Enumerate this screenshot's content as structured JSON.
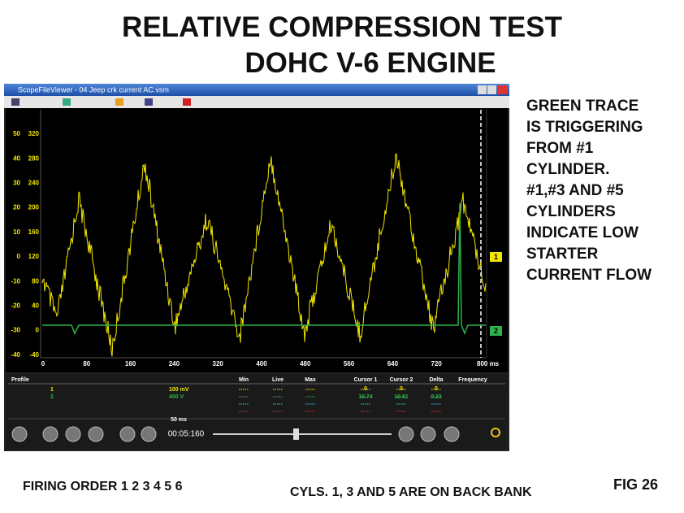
{
  "slide": {
    "title": [
      "RELATIVE COMPRESSION TEST",
      "DOHC V-6 ENGINE"
    ],
    "note": [
      "GREEN TRACE",
      "IS TRIGGERING",
      "FROM #1",
      "CYLINDER.",
      "#1,#3 AND #5",
      "CYLINDERS",
      "INDICATE LOW",
      "STARTER",
      "CURRENT FLOW"
    ],
    "footer_left": "FIRING ORDER 1 2 3 4 5 6",
    "footer_center": "CYLS.  1, 3 AND 5 ARE ON BACK BANK",
    "fig": "FIG  26"
  },
  "scope": {
    "window_title": "ScopeFileViewer - 04 Jeep crk current AC.vsm",
    "scale_a": [
      "50",
      "40",
      "30",
      "20",
      "10",
      "0",
      "-10",
      "-20",
      "-30",
      "-40"
    ],
    "scale_b": [
      "320",
      "280",
      "240",
      "200",
      "160",
      "120",
      "80",
      "40",
      "0",
      "-40"
    ],
    "x_labels": [
      "0",
      "80",
      "160",
      "240",
      "320",
      "400",
      "480",
      "560",
      "640",
      "720",
      "800 ms"
    ],
    "markers": [
      "1",
      "2"
    ],
    "panel": {
      "profile": "Profile",
      "channels": [
        "1",
        "2"
      ],
      "ranges": [
        "100 mV",
        "400 V"
      ],
      "stat_headers": [
        "Min",
        "Live",
        "Max"
      ],
      "cursor_headers": [
        "Cursor 1",
        "Cursor 2",
        "Delta",
        "Frequency"
      ],
      "cursor_row1": [
        "0",
        "0",
        "0"
      ],
      "cursor_row2": [
        "10.74",
        "10.51",
        "0.23"
      ],
      "timebase": "50 ms",
      "time": "00:05:160"
    }
  }
}
